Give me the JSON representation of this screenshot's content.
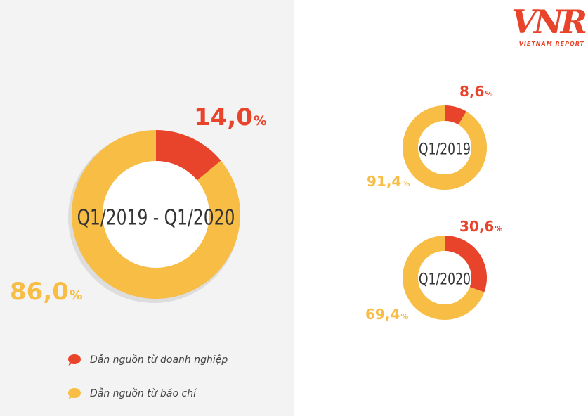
{
  "colors": {
    "enterprise": "#e8432b",
    "press": "#f7bd45",
    "panel": "#f3f3f3"
  },
  "logo": {
    "mark": "VNR",
    "subtitle": "VIETNAM REPORT"
  },
  "legend": [
    {
      "label": "Dẫn nguồn từ doanh nghiệp",
      "color": "#e8432b",
      "icon": "speech-bubble-icon"
    },
    {
      "label": "Dẫn nguồn từ báo chí",
      "color": "#f7bd45",
      "icon": "speech-bubble-icon"
    }
  ],
  "chart_data": [
    {
      "type": "pie",
      "donut": true,
      "title": "Q1/2019 - Q1/2020",
      "slices": [
        {
          "label": "14,0",
          "value": 14.0,
          "color": "#e8432b"
        },
        {
          "label": "86,0",
          "value": 86.0,
          "color": "#f7bd45"
        }
      ],
      "unit": "%"
    },
    {
      "type": "pie",
      "donut": true,
      "title": "Q1/2019",
      "slices": [
        {
          "label": "8,6",
          "value": 8.6,
          "color": "#e8432b"
        },
        {
          "label": "91,4",
          "value": 91.4,
          "color": "#f7bd45"
        }
      ],
      "unit": "%"
    },
    {
      "type": "pie",
      "donut": true,
      "title": "Q1/2020",
      "slices": [
        {
          "label": "30,6",
          "value": 30.6,
          "color": "#e8432b"
        },
        {
          "label": "69,4",
          "value": 69.4,
          "color": "#f7bd45"
        }
      ],
      "unit": "%"
    }
  ]
}
